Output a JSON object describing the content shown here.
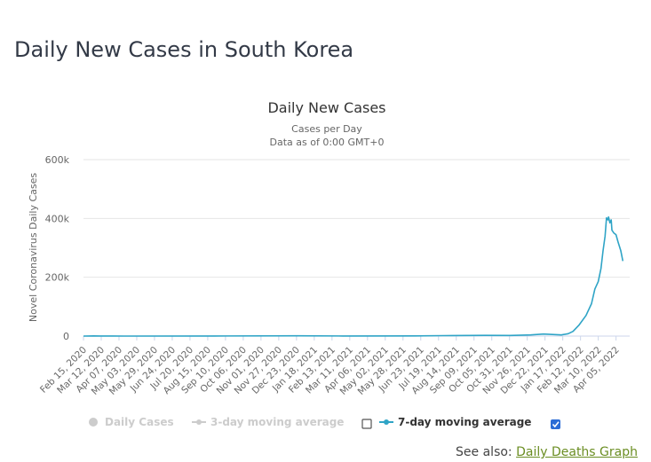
{
  "page": {
    "title": "Daily New Cases in South Korea",
    "see_also_label": "See also:",
    "see_also_link": "Daily Deaths Graph"
  },
  "chart_data": {
    "type": "line",
    "title": "Daily New Cases",
    "subtitle_lines": [
      "Cases per Day",
      "Data as of 0:00 GMT+0"
    ],
    "ylabel": "Novel Coronavirus Daily Cases",
    "xlabel": "",
    "ylim": [
      0,
      600000
    ],
    "yticks": [
      {
        "value": 0,
        "label": "0"
      },
      {
        "value": 200000,
        "label": "200k"
      },
      {
        "value": 400000,
        "label": "400k"
      },
      {
        "value": 600000,
        "label": "600k"
      }
    ],
    "x_range": [
      "2020-02-15",
      "2022-04-25"
    ],
    "x_tick_labels": [
      "Feb 15, 2020",
      "Mar 12, 2020",
      "Apr 07, 2020",
      "May 03, 2020",
      "May 29, 2020",
      "Jun 24, 2020",
      "Jul 20, 2020",
      "Aug 15, 2020",
      "Sep 10, 2020",
      "Oct 06, 2020",
      "Nov 01, 2020",
      "Nov 27, 2020",
      "Dec 23, 2020",
      "Jan 18, 2021",
      "Feb 13, 2021",
      "Mar 11, 2021",
      "Apr 06, 2021",
      "May 02, 2021",
      "May 28, 2021",
      "Jun 23, 2021",
      "Jul 19, 2021",
      "Aug 14, 2021",
      "Sep 09, 2021",
      "Oct 05, 2021",
      "Oct 31, 2021",
      "Nov 26, 2021",
      "Dec 22, 2021",
      "Jan 17, 2022",
      "Feb 12, 2022",
      "Mar 10, 2022",
      "Apr 05, 2022"
    ],
    "grid": true,
    "legend_position": "bottom",
    "colors": {
      "series": "#2fa4c6",
      "gridline": "#e6e6e6",
      "legend_inactive": "#cccccc",
      "checkbox": "#2b6cd6"
    },
    "legend": [
      {
        "name": "Daily Cases",
        "visible": false,
        "marker": "circle"
      },
      {
        "name": "3-day moving average",
        "visible": false,
        "marker": "line-dot",
        "checkbox": "unchecked"
      },
      {
        "name": "7-day moving average",
        "visible": true,
        "marker": "line-dot",
        "checkbox": "checked"
      }
    ],
    "series": [
      {
        "name": "7-day moving average",
        "points": [
          [
            "2020-02-15",
            0
          ],
          [
            "2020-03-01",
            600
          ],
          [
            "2020-03-10",
            400
          ],
          [
            "2020-04-15",
            50
          ],
          [
            "2020-08-25",
            300
          ],
          [
            "2020-12-25",
            1000
          ],
          [
            "2021-03-01",
            400
          ],
          [
            "2021-06-15",
            500
          ],
          [
            "2021-07-25",
            1500
          ],
          [
            "2021-09-25",
            2500
          ],
          [
            "2021-11-01",
            2000
          ],
          [
            "2021-12-01",
            4000
          ],
          [
            "2021-12-20",
            7000
          ],
          [
            "2022-01-05",
            5000
          ],
          [
            "2022-01-15",
            4000
          ],
          [
            "2022-01-25",
            8000
          ],
          [
            "2022-02-01",
            16000
          ],
          [
            "2022-02-10",
            38000
          ],
          [
            "2022-02-20",
            70000
          ],
          [
            "2022-02-28",
            110000
          ],
          [
            "2022-03-05",
            160000
          ],
          [
            "2022-03-10",
            185000
          ],
          [
            "2022-03-14",
            230000
          ],
          [
            "2022-03-17",
            290000
          ],
          [
            "2022-03-20",
            340000
          ],
          [
            "2022-03-22",
            402000
          ],
          [
            "2022-03-24",
            395000
          ],
          [
            "2022-03-25",
            405000
          ],
          [
            "2022-03-27",
            385000
          ],
          [
            "2022-03-29",
            395000
          ],
          [
            "2022-03-30",
            360000
          ],
          [
            "2022-04-02",
            350000
          ],
          [
            "2022-04-05",
            345000
          ],
          [
            "2022-04-08",
            320000
          ],
          [
            "2022-04-12",
            290000
          ],
          [
            "2022-04-15",
            255000
          ]
        ]
      }
    ]
  }
}
